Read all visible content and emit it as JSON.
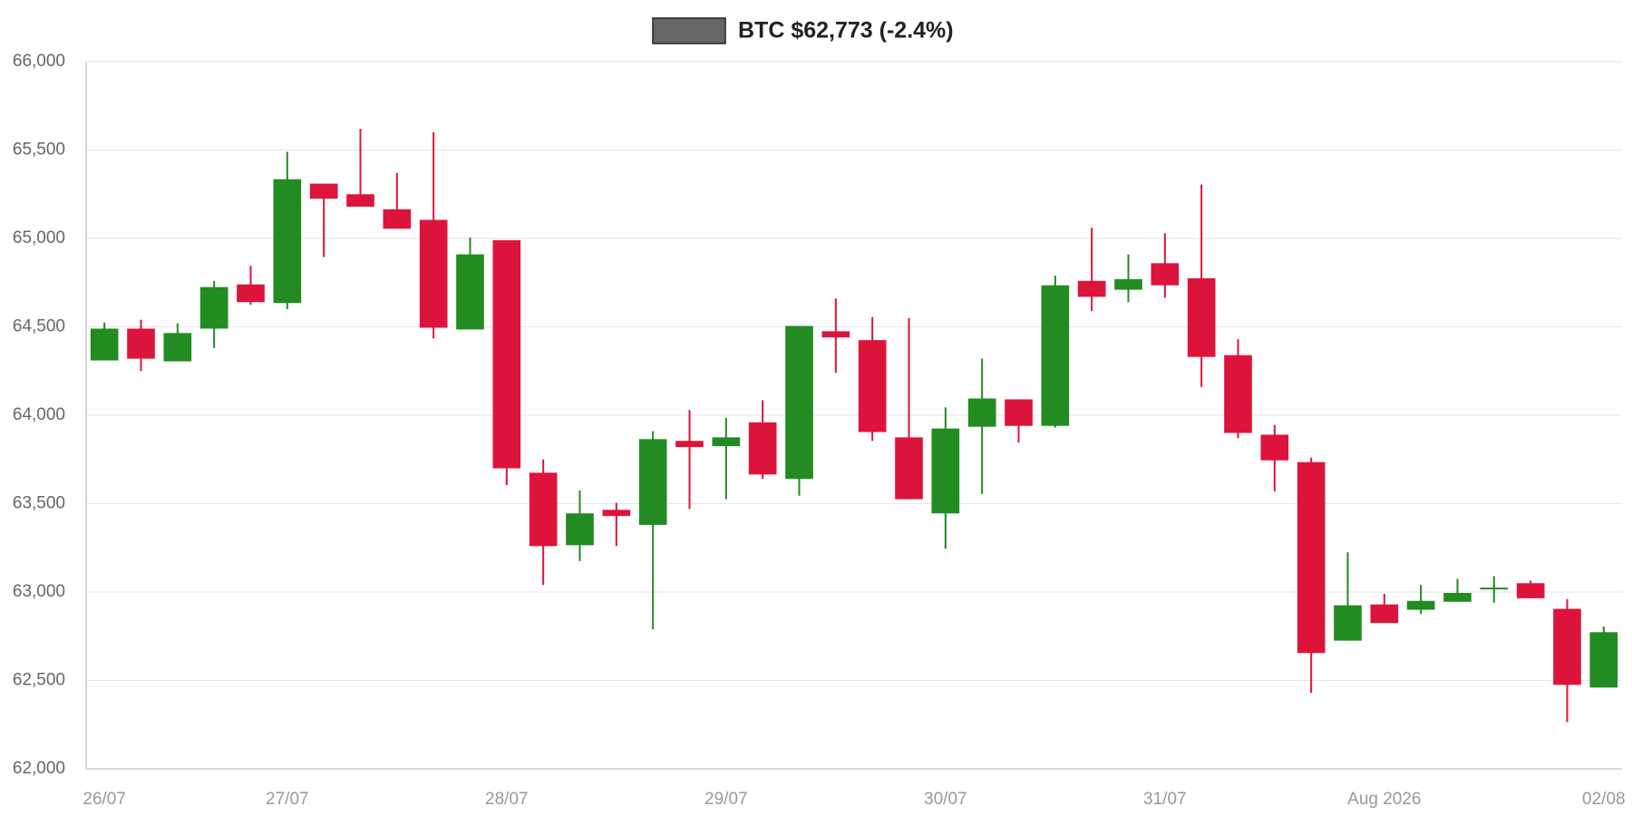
{
  "chart_data": {
    "type": "candlestick",
    "categories": [
      "26/07",
      null,
      null,
      null,
      null,
      "27/07",
      null,
      null,
      null,
      null,
      null,
      "28/07",
      null,
      null,
      null,
      null,
      null,
      "29/07",
      null,
      null,
      null,
      null,
      null,
      "30/07",
      null,
      null,
      null,
      null,
      null,
      "31/07",
      null,
      null,
      null,
      null,
      null,
      "Aug 2026",
      null,
      null,
      null,
      null,
      null,
      "02/08"
    ],
    "series": [
      {
        "name": "BTC $62,773 (-2.4%)",
        "color": "#666666",
        "open": [
          64310,
          64490,
          64305,
          64490,
          64740,
          64635,
          65310,
          65250,
          65165,
          65105,
          64485,
          64990,
          63675,
          63265,
          63465,
          63380,
          63855,
          63825,
          63960,
          63640,
          64475,
          64425,
          63875,
          63445,
          63935,
          64090,
          63940,
          64760,
          64710,
          64860,
          64775,
          64340,
          63890,
          63735,
          62725,
          62930,
          62900,
          62945,
          63015,
          63050,
          62905,
          62460
        ],
        "high": [
          64525,
          64540,
          64520,
          64760,
          64845,
          65490,
          65310,
          65620,
          65370,
          65600,
          65005,
          64990,
          63750,
          63575,
          63505,
          63910,
          64030,
          63985,
          64085,
          64505,
          64660,
          64555,
          64550,
          64045,
          64320,
          64090,
          64790,
          65060,
          64910,
          65030,
          65305,
          64430,
          63945,
          63760,
          63225,
          62990,
          63040,
          63075,
          63090,
          63065,
          62960,
          62805
        ],
        "low": [
          64310,
          64250,
          64305,
          64380,
          64625,
          64600,
          64895,
          65180,
          65055,
          64435,
          64485,
          63605,
          63040,
          63175,
          63260,
          62790,
          63470,
          63525,
          63640,
          63545,
          64240,
          63855,
          63525,
          63245,
          63555,
          63845,
          63930,
          64590,
          64640,
          64665,
          64160,
          63870,
          63570,
          62430,
          62725,
          62825,
          62875,
          62945,
          62940,
          62965,
          62265,
          62460
        ],
        "close": [
          64490,
          64320,
          64465,
          64725,
          64640,
          65335,
          65225,
          65180,
          65055,
          64495,
          64910,
          63700,
          63260,
          63445,
          63430,
          63865,
          63820,
          63875,
          63665,
          64505,
          64440,
          63905,
          63525,
          63925,
          64095,
          63940,
          64735,
          64670,
          64770,
          64735,
          64330,
          63900,
          63745,
          62655,
          62925,
          62825,
          62950,
          62995,
          63025,
          62965,
          62475,
          62773
        ]
      }
    ],
    "up_color": "#228b22",
    "down_color": "#dc143c",
    "ylim": [
      62000,
      66000
    ],
    "yticks": [
      {
        "value": 62000,
        "label": "62,000"
      },
      {
        "value": 62500,
        "label": "62,500"
      },
      {
        "value": 63000,
        "label": "63,000"
      },
      {
        "value": 63500,
        "label": "63,500"
      },
      {
        "value": 64000,
        "label": "64,000"
      },
      {
        "value": 64500,
        "label": "64,500"
      },
      {
        "value": 65000,
        "label": "65,000"
      },
      {
        "value": 65500,
        "label": "65,500"
      },
      {
        "value": 66000,
        "label": "66,000"
      }
    ],
    "grid": true
  }
}
